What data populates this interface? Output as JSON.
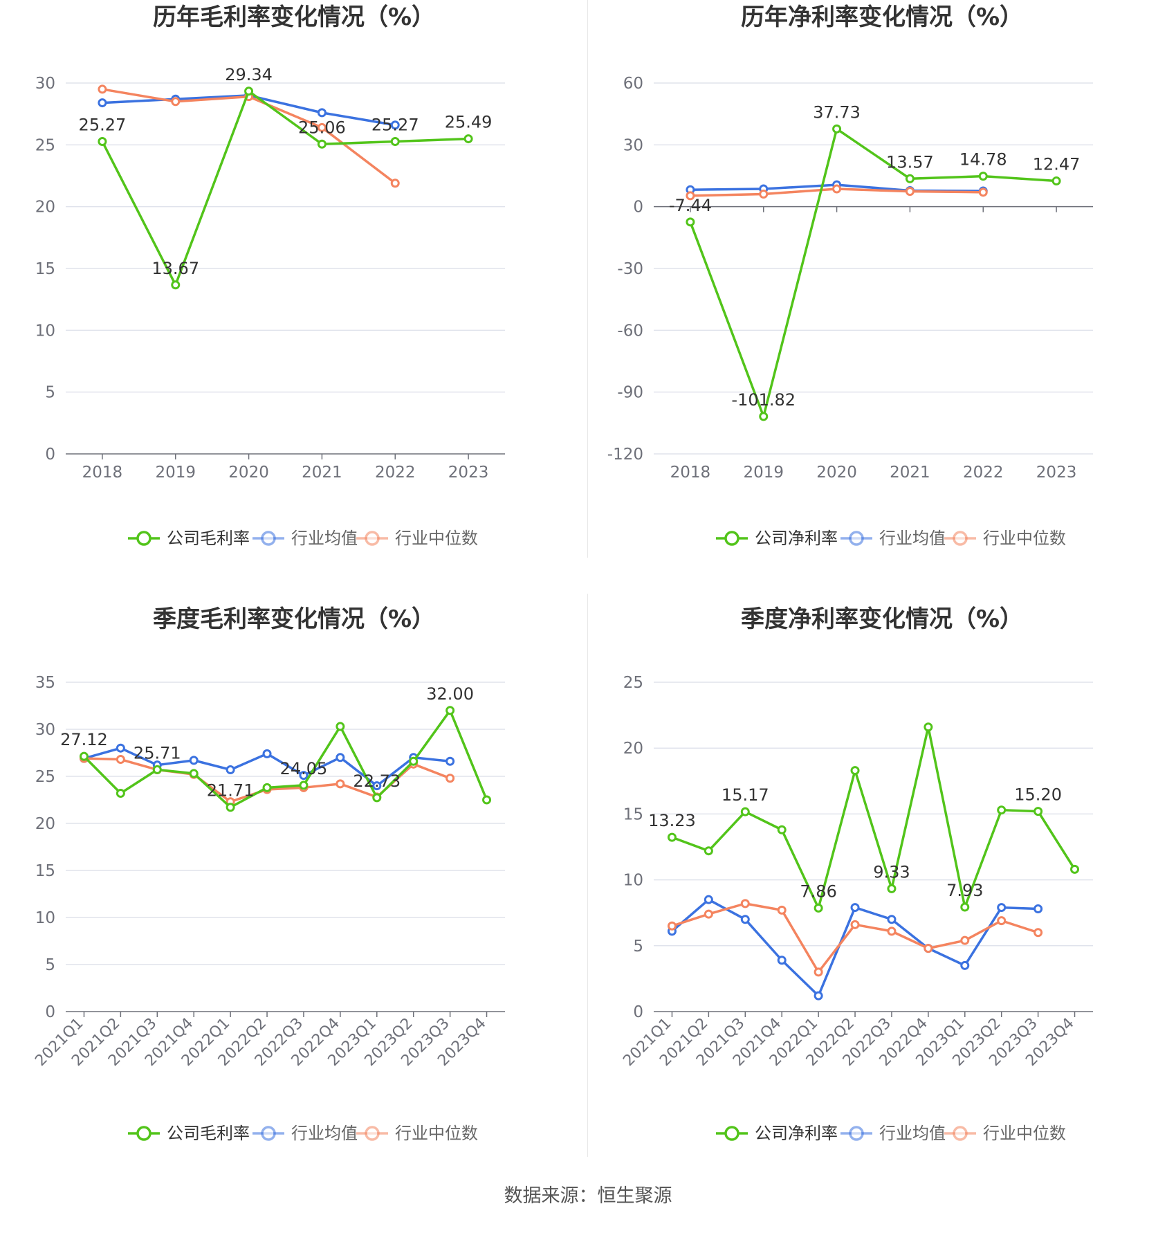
{
  "colors": {
    "company": "#52c41a",
    "avg": "#3b72e0",
    "median": "#f4845f",
    "grid": "#e0e3ec",
    "axis": "#6e7079",
    "tick_text": "#6e7079",
    "title": "#333333",
    "legend_text": "#333333",
    "legend_muted": "#666666"
  },
  "source_text": "数据来源：恒生聚源",
  "chart_data": [
    {
      "type": "line",
      "title": "历年毛利率变化情况（%）",
      "categories": [
        "2018",
        "2019",
        "2020",
        "2021",
        "2022",
        "2023"
      ],
      "ylim": [
        0,
        30
      ],
      "yticks": [
        0,
        5,
        10,
        15,
        20,
        25,
        30
      ],
      "rotate_x": false,
      "series": [
        {
          "name": "公司毛利率",
          "key": "company",
          "values": [
            25.27,
            13.67,
            29.34,
            25.06,
            25.27,
            25.49
          ]
        },
        {
          "name": "行业均值",
          "key": "avg",
          "values": [
            28.4,
            28.7,
            29.0,
            27.6,
            26.6,
            null
          ]
        },
        {
          "name": "行业中位数",
          "key": "median",
          "values": [
            29.5,
            28.5,
            28.9,
            26.4,
            21.9,
            null
          ]
        }
      ],
      "data_labels": [
        "25.27",
        "13.67",
        "29.34",
        "25.06",
        "25.27",
        "25.49"
      ],
      "label_below": [
        false,
        false,
        false,
        false,
        false,
        false
      ]
    },
    {
      "type": "line",
      "title": "历年净利率变化情况（%）",
      "categories": [
        "2018",
        "2019",
        "2020",
        "2021",
        "2022",
        "2023"
      ],
      "ylim": [
        -120,
        60
      ],
      "yticks": [
        -120,
        -90,
        -60,
        -30,
        0,
        30,
        60
      ],
      "rotate_x": false,
      "series": [
        {
          "name": "公司净利率",
          "key": "company",
          "values": [
            -7.44,
            -101.82,
            37.73,
            13.57,
            14.78,
            12.47
          ]
        },
        {
          "name": "行业均值",
          "key": "avg",
          "values": [
            8.2,
            8.6,
            10.6,
            7.8,
            7.6,
            null
          ]
        },
        {
          "name": "行业中位数",
          "key": "median",
          "values": [
            5.3,
            6.1,
            8.6,
            7.4,
            7.0,
            null
          ]
        }
      ],
      "data_labels": [
        "-7.44",
        "-101.82",
        "37.73",
        "13.57",
        "14.78",
        "12.47"
      ],
      "label_below": [
        false,
        false,
        false,
        false,
        false,
        false
      ]
    },
    {
      "type": "line",
      "title": "季度毛利率变化情况（%）",
      "categories": [
        "2021Q1",
        "2021Q2",
        "2021Q3",
        "2021Q4",
        "2022Q1",
        "2022Q2",
        "2022Q3",
        "2022Q4",
        "2023Q1",
        "2023Q2",
        "2023Q3",
        "2023Q4"
      ],
      "ylim": [
        0,
        35
      ],
      "yticks": [
        0,
        5,
        10,
        15,
        20,
        25,
        30,
        35
      ],
      "rotate_x": true,
      "series": [
        {
          "name": "公司毛利率",
          "key": "company",
          "values": [
            27.12,
            23.2,
            25.71,
            25.3,
            21.71,
            23.8,
            24.05,
            30.3,
            22.73,
            26.6,
            32.0,
            22.5
          ]
        },
        {
          "name": "行业均值",
          "key": "avg",
          "values": [
            26.9,
            28.0,
            26.2,
            26.7,
            25.7,
            27.4,
            25.1,
            27.0,
            24.0,
            27.0,
            26.6,
            null
          ]
        },
        {
          "name": "行业中位数",
          "key": "median",
          "values": [
            26.9,
            26.8,
            25.7,
            25.2,
            22.3,
            23.6,
            23.8,
            24.2,
            22.8,
            26.3,
            24.8,
            null
          ]
        }
      ],
      "data_labels": [
        "27.12",
        "",
        "25.71",
        "",
        "21.71",
        "",
        "24.05",
        "",
        "22.73",
        "",
        "32.00",
        ""
      ],
      "label_below": [
        false,
        false,
        false,
        false,
        false,
        false,
        false,
        false,
        false,
        false,
        false,
        false
      ]
    },
    {
      "type": "line",
      "title": "季度净利率变化情况（%）",
      "categories": [
        "2021Q1",
        "2021Q2",
        "2021Q3",
        "2021Q4",
        "2022Q1",
        "2022Q2",
        "2022Q3",
        "2022Q4",
        "2023Q1",
        "2023Q2",
        "2023Q3",
        "2023Q4"
      ],
      "ylim": [
        0,
        25
      ],
      "yticks": [
        0,
        5,
        10,
        15,
        20,
        25
      ],
      "rotate_x": true,
      "series": [
        {
          "name": "公司净利率",
          "key": "company",
          "values": [
            13.23,
            12.2,
            15.17,
            13.8,
            7.86,
            18.3,
            9.33,
            21.6,
            7.93,
            15.3,
            15.2,
            10.8
          ]
        },
        {
          "name": "行业均值",
          "key": "avg",
          "values": [
            6.1,
            8.5,
            7.0,
            3.9,
            1.2,
            7.9,
            7.0,
            4.8,
            3.5,
            7.9,
            7.8,
            null
          ]
        },
        {
          "name": "行业中位数",
          "key": "median",
          "values": [
            6.5,
            7.4,
            8.2,
            7.7,
            3.0,
            6.6,
            6.1,
            4.8,
            5.4,
            6.9,
            6.0,
            null
          ]
        }
      ],
      "data_labels": [
        "13.23",
        "",
        "15.17",
        "",
        "7.86",
        "",
        "9.33",
        "",
        "7.93",
        "",
        "15.20",
        ""
      ],
      "label_below": [
        false,
        false,
        false,
        false,
        false,
        false,
        false,
        false,
        false,
        false,
        false,
        false
      ]
    }
  ]
}
